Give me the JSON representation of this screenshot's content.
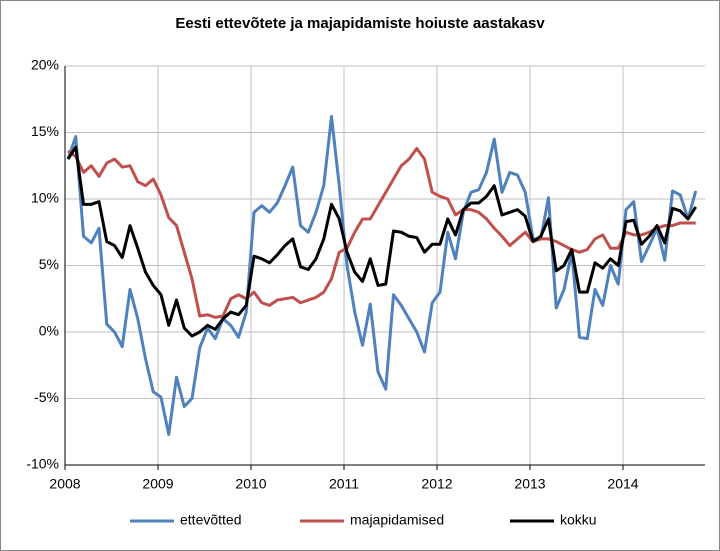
{
  "chart_data": {
    "type": "line",
    "title": "Eesti ettevõtete ja majapidamiste hoiuste aastakasv",
    "categories": [
      "2008",
      null,
      null,
      null,
      null,
      null,
      null,
      null,
      null,
      null,
      null,
      null,
      "2009",
      null,
      null,
      null,
      null,
      null,
      null,
      null,
      null,
      null,
      null,
      null,
      "2010",
      null,
      null,
      null,
      null,
      null,
      null,
      null,
      null,
      null,
      null,
      null,
      "2011",
      null,
      null,
      null,
      null,
      null,
      null,
      null,
      null,
      null,
      null,
      null,
      "2012",
      null,
      null,
      null,
      null,
      null,
      null,
      null,
      null,
      null,
      null,
      null,
      "2013",
      null,
      null,
      null,
      null,
      null,
      null,
      null,
      null,
      null,
      null,
      null,
      "2014",
      null,
      null,
      null,
      null,
      null,
      null,
      null,
      null,
      null
    ],
    "series": [
      {
        "name": "ettevõtted",
        "color": "#4f81bd",
        "values": [
          13,
          14.7,
          7.2,
          6.7,
          7.8,
          0.6,
          0,
          -1.1,
          3.2,
          1,
          -2,
          -4.5,
          -4.9,
          -7.7,
          -3.4,
          -5.6,
          -5,
          -1.2,
          0.3,
          -0.5,
          1,
          0.5,
          -0.4,
          1.5,
          9,
          9.5,
          9,
          9.7,
          11,
          12.4,
          8,
          7.5,
          9,
          11,
          16.2,
          11,
          5,
          1.5,
          -1,
          2.1,
          -3,
          -4.3,
          2.8,
          2,
          1,
          0,
          -1.5,
          2.2,
          3,
          7.5,
          5.5,
          9,
          10.5,
          10.7,
          12,
          14.5,
          10.5,
          12,
          11.8,
          10.5,
          7,
          7,
          10.1,
          1.8,
          3.2,
          6,
          -0.4,
          -0.5,
          3.2,
          2,
          5,
          3.6,
          9.2,
          9.8,
          5.3,
          6.5,
          7.8,
          5.4,
          10.6,
          10.3,
          8.5,
          10.6
        ]
      },
      {
        "name": "majapidamised",
        "color": "#c0504d",
        "values": [
          13.6,
          13.2,
          12,
          12.5,
          11.7,
          12.7,
          13,
          12.4,
          12.5,
          11.3,
          11,
          11.5,
          10.3,
          8.6,
          8,
          6,
          4,
          1.2,
          1.3,
          1.1,
          1.2,
          2.5,
          2.8,
          2.5,
          3,
          2.2,
          2,
          2.4,
          2.5,
          2.6,
          2.2,
          2.4,
          2.6,
          3,
          4,
          6,
          6.3,
          7.5,
          8.5,
          8.5,
          9.5,
          10.5,
          11.5,
          12.5,
          13,
          13.8,
          13,
          10.5,
          10.2,
          10,
          8.8,
          9.2,
          9.2,
          9,
          8.5,
          7.8,
          7.2,
          6.5,
          7,
          7.5,
          6.8,
          7,
          7,
          6.8,
          6.5,
          6.2,
          6,
          6.2,
          7,
          7.3,
          6.3,
          6.3,
          7.5,
          7.3,
          7.3,
          7.5,
          7.8,
          8,
          8,
          8.2,
          8.2,
          8.2
        ]
      },
      {
        "name": "kokku",
        "color": "#000000",
        "values": [
          13,
          13.9,
          9.6,
          9.6,
          9.8,
          6.8,
          6.5,
          5.6,
          8,
          6.3,
          4.5,
          3.5,
          2.8,
          0.5,
          2.4,
          0.3,
          -0.3,
          0,
          0.5,
          0.2,
          1,
          1.5,
          1.3,
          2,
          5.7,
          5.5,
          5.2,
          5.8,
          6.5,
          7,
          4.9,
          4.7,
          5.5,
          7,
          9.6,
          8.5,
          6,
          4.5,
          3.8,
          5.5,
          3.5,
          3.6,
          7.6,
          7.5,
          7.2,
          7.1,
          6,
          6.6,
          6.6,
          8.5,
          7.3,
          9.2,
          9.7,
          9.7,
          10.2,
          11,
          8.8,
          9,
          9.2,
          8.7,
          6.8,
          7.2,
          8.5,
          4.6,
          5,
          6.2,
          3,
          3,
          5.2,
          4.8,
          5.5,
          5,
          8.3,
          8.4,
          6.6,
          7.2,
          8,
          6.7,
          9.3,
          9.1,
          8.5,
          9.4
        ]
      }
    ],
    "ylim": [
      -10,
      20
    ],
    "yticks": [
      {
        "value": -10,
        "label": "-10%"
      },
      {
        "value": -5,
        "label": "-5%"
      },
      {
        "value": 0,
        "label": "0%"
      },
      {
        "value": 5,
        "label": "5%"
      },
      {
        "value": 10,
        "label": "10%"
      },
      {
        "value": 15,
        "label": "15%"
      },
      {
        "value": 20,
        "label": "20%"
      }
    ],
    "grid": true,
    "legend": "bottom"
  }
}
